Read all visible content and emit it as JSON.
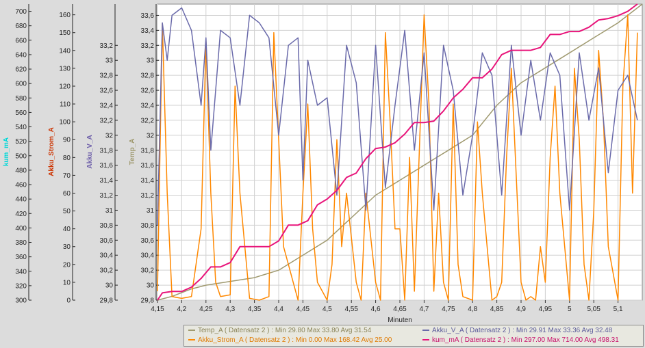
{
  "chart_data": {
    "type": "line",
    "xlabel": "Minuten",
    "xlim": [
      4.15,
      5.15
    ],
    "x_ticks": [
      "4,15",
      "4,2",
      "4,25",
      "4,3",
      "4,35",
      "4,4",
      "4,45",
      "4,5",
      "4,55",
      "4,6",
      "4,65",
      "4,7",
      "4,75",
      "4,8",
      "4,85",
      "4,9",
      "4,95",
      "5",
      "5,05",
      "5,1"
    ],
    "axes": [
      {
        "id": "kum",
        "label": "kum_mA",
        "color": "#00d8d8",
        "min": 300,
        "max": 710,
        "ticks": [
          "300",
          "320",
          "340",
          "360",
          "380",
          "400",
          "420",
          "440",
          "460",
          "480",
          "500",
          "520",
          "540",
          "560",
          "580",
          "600",
          "620",
          "640",
          "660",
          "680",
          "700"
        ]
      },
      {
        "id": "strom",
        "label": "Akku_Strom_A",
        "color": "#cc3300",
        "min": 0,
        "max": 166,
        "ticks": [
          "0",
          "10",
          "20",
          "30",
          "40",
          "50",
          "60",
          "70",
          "80",
          "90",
          "100",
          "110",
          "120",
          "130",
          "140",
          "150",
          "160"
        ]
      },
      {
        "id": "volt",
        "label": "Akku_V_A",
        "color": "#6a5aa8",
        "min": 29.8,
        "max": 33.75,
        "ticks": [
          "29,8",
          "30",
          "30,2",
          "30,4",
          "30,6",
          "30,8",
          "31",
          "31,2",
          "31,4",
          "31,6",
          "31,8",
          "32",
          "32,2",
          "32,4",
          "32,6",
          "32,8",
          "33",
          "33,2"
        ]
      },
      {
        "id": "temp",
        "label": "Temp_A",
        "color": "#a09a70",
        "min": 29.8,
        "max": 33.75,
        "ticks": [
          "29,8",
          "30",
          "30,2",
          "30,4",
          "30,6",
          "30,8",
          "31",
          "31,2",
          "31,4",
          "31,6",
          "31,8",
          "32",
          "32,2",
          "32,4",
          "32,6",
          "32,8",
          "33",
          "33,2",
          "33,4",
          "33,6"
        ]
      }
    ],
    "series": [
      {
        "name": "Temp_A",
        "axis": "temp",
        "color": "#a09a70",
        "x": [
          4.15,
          4.18,
          4.2,
          4.22,
          4.25,
          4.3,
          4.35,
          4.4,
          4.45,
          4.5,
          4.55,
          4.6,
          4.65,
          4.7,
          4.75,
          4.8,
          4.85,
          4.9,
          4.95,
          5.0,
          5.05,
          5.1,
          5.15
        ],
        "y": [
          29.8,
          29.85,
          29.9,
          29.95,
          30.0,
          30.05,
          30.1,
          30.2,
          30.4,
          30.6,
          30.9,
          31.2,
          31.4,
          31.6,
          31.8,
          32.0,
          32.4,
          32.7,
          32.9,
          33.1,
          33.3,
          33.5,
          33.8
        ]
      },
      {
        "name": "Akku_Strom_A",
        "axis": "strom",
        "color": "#ff8800",
        "x": [
          4.15,
          4.16,
          4.17,
          4.18,
          4.2,
          4.22,
          4.24,
          4.25,
          4.26,
          4.27,
          4.28,
          4.3,
          4.31,
          4.32,
          4.34,
          4.36,
          4.38,
          4.39,
          4.4,
          4.41,
          4.42,
          4.43,
          4.44,
          4.45,
          4.46,
          4.47,
          4.48,
          4.5,
          4.51,
          4.52,
          4.53,
          4.54,
          4.55,
          4.56,
          4.57,
          4.58,
          4.6,
          4.61,
          4.62,
          4.63,
          4.64,
          4.65,
          4.66,
          4.67,
          4.68,
          4.7,
          4.71,
          4.72,
          4.73,
          4.74,
          4.75,
          4.76,
          4.77,
          4.78,
          4.8,
          4.81,
          4.82,
          4.83,
          4.84,
          4.85,
          4.86,
          4.87,
          4.88,
          4.9,
          4.91,
          4.92,
          4.93,
          4.94,
          4.95,
          4.96,
          4.97,
          4.98,
          5.0,
          5.01,
          5.02,
          5.03,
          5.04,
          5.05,
          5.06,
          5.07,
          5.08,
          5.1,
          5.11,
          5.12,
          5.13,
          5.14
        ],
        "y": [
          5,
          155,
          60,
          2,
          1,
          2,
          40,
          145,
          60,
          10,
          2,
          3,
          120,
          60,
          1,
          0,
          2,
          150,
          90,
          30,
          20,
          10,
          0,
          60,
          110,
          40,
          10,
          0,
          20,
          90,
          30,
          60,
          35,
          10,
          0,
          60,
          10,
          0,
          150,
          100,
          40,
          40,
          0,
          80,
          5,
          160,
          110,
          5,
          60,
          10,
          0,
          110,
          20,
          2,
          0,
          100,
          60,
          30,
          0,
          2,
          10,
          80,
          130,
          10,
          0,
          2,
          0,
          30,
          10,
          80,
          120,
          60,
          0,
          130,
          90,
          20,
          0,
          50,
          140,
          100,
          30,
          0,
          120,
          160,
          60,
          150
        ]
      },
      {
        "name": "Akku_V_A",
        "axis": "volt",
        "color": "#6a6aaa",
        "x": [
          4.15,
          4.16,
          4.17,
          4.18,
          4.2,
          4.22,
          4.24,
          4.25,
          4.26,
          4.28,
          4.3,
          4.32,
          4.34,
          4.36,
          4.38,
          4.4,
          4.42,
          4.44,
          4.45,
          4.46,
          4.48,
          4.5,
          4.52,
          4.54,
          4.56,
          4.58,
          4.6,
          4.62,
          4.64,
          4.66,
          4.68,
          4.7,
          4.72,
          4.74,
          4.76,
          4.78,
          4.8,
          4.82,
          4.84,
          4.86,
          4.88,
          4.9,
          4.92,
          4.94,
          4.96,
          4.98,
          5.0,
          5.02,
          5.04,
          5.06,
          5.08,
          5.1,
          5.12,
          5.14
        ],
        "y": [
          30.8,
          33.5,
          33.0,
          33.6,
          33.7,
          33.4,
          32.4,
          33.3,
          31.8,
          33.4,
          33.3,
          32.4,
          33.6,
          33.5,
          33.3,
          32.0,
          33.2,
          33.3,
          31.4,
          33.0,
          32.4,
          32.5,
          31.2,
          33.2,
          32.7,
          31.0,
          33.2,
          31.3,
          32.4,
          33.4,
          31.8,
          33.1,
          31.0,
          33.2,
          32.6,
          31.2,
          32.0,
          33.1,
          32.8,
          31.2,
          33.2,
          32.0,
          33.0,
          32.2,
          33.1,
          32.8,
          31.0,
          33.1,
          32.2,
          32.9,
          31.5,
          32.6,
          32.8,
          32.2
        ]
      },
      {
        "name": "kum_mA",
        "axis": "kum",
        "color": "#e8147a",
        "x": [
          4.15,
          4.16,
          4.18,
          4.2,
          4.22,
          4.24,
          4.26,
          4.28,
          4.3,
          4.32,
          4.34,
          4.36,
          4.38,
          4.4,
          4.42,
          4.44,
          4.46,
          4.48,
          4.5,
          4.52,
          4.54,
          4.56,
          4.58,
          4.6,
          4.62,
          4.64,
          4.66,
          4.68,
          4.7,
          4.72,
          4.74,
          4.76,
          4.78,
          4.8,
          4.82,
          4.84,
          4.86,
          4.88,
          4.9,
          4.92,
          4.94,
          4.96,
          4.98,
          5.0,
          5.02,
          5.04,
          5.06,
          5.08,
          5.1,
          5.12,
          5.14
        ],
        "y": [
          298,
          310,
          312,
          312,
          318,
          330,
          346,
          346,
          352,
          374,
          374,
          374,
          374,
          382,
          404,
          404,
          410,
          432,
          440,
          452,
          470,
          476,
          496,
          510,
          512,
          518,
          530,
          546,
          546,
          548,
          562,
          580,
          592,
          608,
          608,
          620,
          640,
          646,
          646,
          646,
          650,
          668,
          668,
          672,
          672,
          678,
          688,
          690,
          694,
          700,
          712
        ]
      }
    ],
    "legend": [
      {
        "text": "Temp_A ( Datensatz 2 ) : Min 29.80   Max 33.80   Avg 31.54",
        "color": "#a09a70"
      },
      {
        "text": "Akku_V_A ( Datensatz 2 ) : Min 29.91   Max 33.36   Avg 32.48",
        "color": "#6a6aaa"
      },
      {
        "text": "Akku_Strom_A ( Datensatz 2 ) : Min 0.00   Max 168.42   Avg 25.00",
        "color": "#ff8800"
      },
      {
        "text": "kum_mA ( Datensatz 2 ) : Min 297.00   Max 714.00   Avg 498.31",
        "color": "#e8147a"
      }
    ]
  }
}
